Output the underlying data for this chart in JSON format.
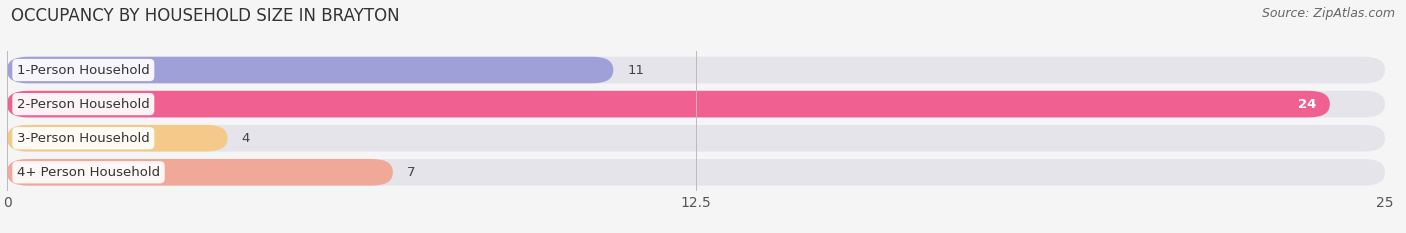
{
  "title": "OCCUPANCY BY HOUSEHOLD SIZE IN BRAYTON",
  "source": "Source: ZipAtlas.com",
  "categories": [
    "1-Person Household",
    "2-Person Household",
    "3-Person Household",
    "4+ Person Household"
  ],
  "values": [
    11,
    24,
    4,
    7
  ],
  "bar_colors": [
    "#a0a0d8",
    "#f06090",
    "#f5c98a",
    "#f0a898"
  ],
  "xlim": [
    0,
    25
  ],
  "xticks": [
    0,
    12.5,
    25
  ],
  "background_color": "#f5f5f5",
  "bar_bg_color": "#e4e4ea",
  "title_fontsize": 12,
  "source_fontsize": 9,
  "tick_fontsize": 10,
  "label_fontsize": 9.5,
  "value_fontsize": 9.5
}
